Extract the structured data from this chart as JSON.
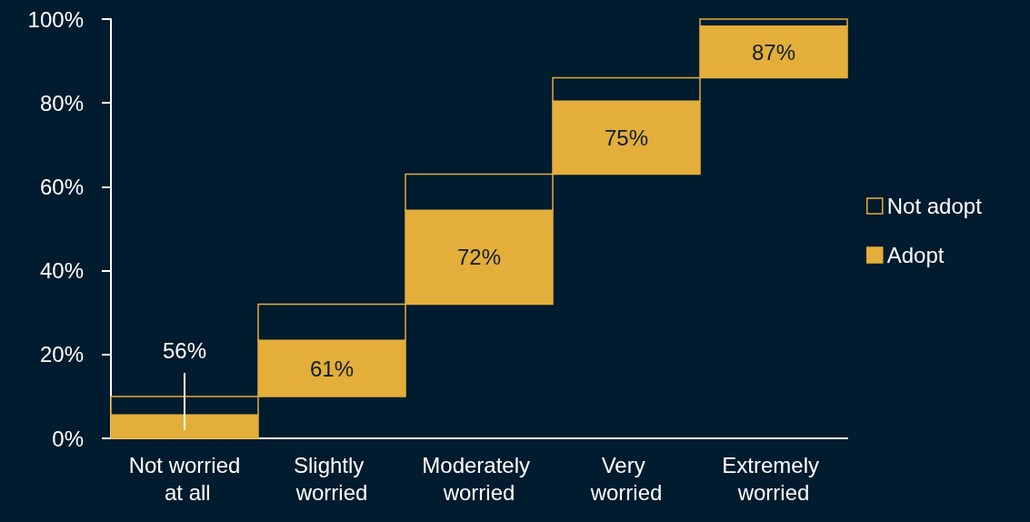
{
  "chart_data": {
    "type": "bar",
    "categories": [
      "Not worried at all",
      "Slightly worried",
      "Moderately worried",
      "Very worried",
      "Extremely worried"
    ],
    "series": [
      {
        "name": "Adopt",
        "color": "#e3ae3a",
        "base": [
          0,
          10,
          32,
          63,
          86
        ],
        "values": [
          5.6,
          13.4,
          22.4,
          17.4,
          12.3
        ]
      },
      {
        "name": "Not adopt",
        "color": "#011b2f",
        "base": [
          5.6,
          23.4,
          54.4,
          80.4,
          98.3
        ],
        "values": [
          4.4,
          8.6,
          8.6,
          5.6,
          1.7
        ]
      }
    ],
    "ylim": [
      0,
      100
    ],
    "yticks": [
      {
        "value": 0,
        "label": "0%"
      },
      {
        "value": 20,
        "label": "20%"
      },
      {
        "value": 40,
        "label": "40%"
      },
      {
        "value": 60,
        "label": "60%"
      },
      {
        "value": 80,
        "label": "80%"
      },
      {
        "value": 100,
        "label": "100%"
      }
    ],
    "annotations": [
      {
        "text": "56%",
        "x": "Not worried at all",
        "y": 5.6
      },
      {
        "text": "61%",
        "x": "Slightly worried",
        "y": 23.4
      },
      {
        "text": "72%",
        "x": "Moderately worried",
        "y": 54.4
      },
      {
        "text": "75%",
        "x": "Very worried",
        "y": 80.4
      },
      {
        "text": "87%",
        "x": "Extremely worried",
        "y": 98.3
      }
    ],
    "grid": false,
    "legend": "right"
  }
}
